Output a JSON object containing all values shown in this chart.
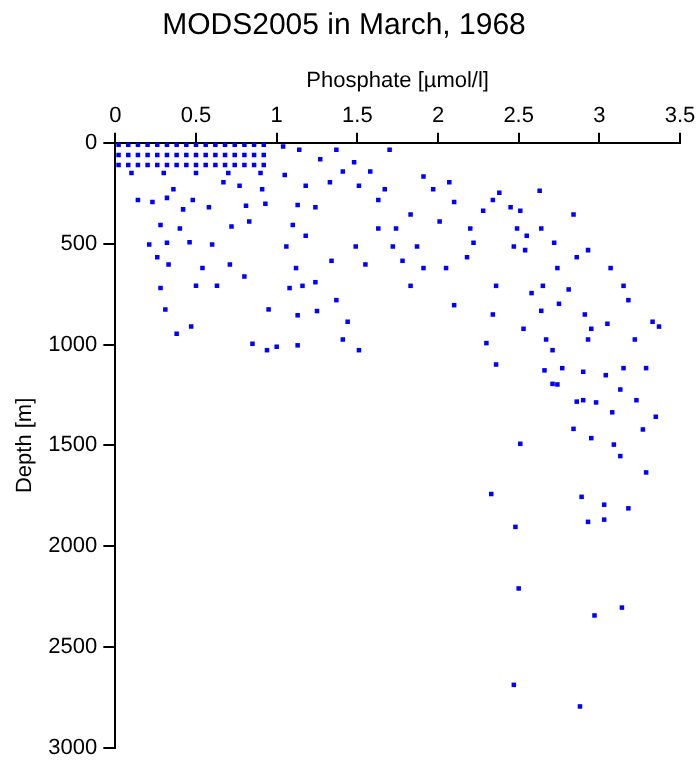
{
  "chart_data": {
    "type": "scatter",
    "title": "MODS2005 in March, 1968",
    "xlabel": "Phosphate [µmol/l]",
    "ylabel": "Depth [m]",
    "xlim": [
      0,
      3.5
    ],
    "xticks": [
      0,
      0.5,
      1,
      1.5,
      2,
      2.5,
      3,
      3.5
    ],
    "ylim": [
      3000,
      0
    ],
    "yticks": [
      0,
      500,
      1000,
      1500,
      2000,
      2500,
      3000
    ],
    "grid": false,
    "legend": false,
    "marker": "square",
    "color": "#0000ff",
    "x": [
      0.02,
      0.08,
      0.14,
      0.2,
      0.26,
      0.32,
      0.38,
      0.44,
      0.5,
      0.56,
      0.62,
      0.68,
      0.74,
      0.8,
      0.86,
      0.92,
      0.02,
      0.08,
      0.14,
      0.2,
      0.26,
      0.32,
      0.38,
      0.44,
      0.5,
      0.56,
      0.62,
      0.68,
      0.74,
      0.8,
      0.86,
      0.92,
      0.02,
      0.08,
      0.14,
      0.2,
      0.26,
      0.32,
      0.38,
      0.44,
      0.5,
      0.56,
      0.62,
      0.68,
      0.74,
      0.8,
      0.86,
      0.92,
      0.1,
      0.3,
      0.5,
      0.7,
      0.9,
      0.14,
      0.23,
      0.32,
      0.36,
      0.48,
      0.58,
      0.42,
      0.28,
      0.4,
      0.21,
      0.32,
      0.46,
      0.6,
      0.26,
      0.33,
      0.54,
      0.5,
      0.63,
      0.71,
      0.8,
      0.28,
      0.31,
      0.38,
      0.47,
      0.85,
      0.94,
      1.0,
      1.13,
      0.72,
      0.83,
      0.81,
      0.93,
      0.91,
      0.77,
      0.67,
      1.05,
      1.04,
      1.14,
      1.27,
      1.37,
      1.48,
      1.58,
      1.7,
      1.18,
      1.13,
      1.24,
      1.1,
      1.06,
      1.18,
      1.12,
      1.16,
      1.24,
      1.34,
      1.49,
      1.55,
      1.37,
      1.08,
      0.95,
      1.13,
      1.25,
      1.41,
      1.51,
      1.44,
      1.63,
      1.72,
      1.78,
      1.33,
      1.51,
      1.67,
      1.41,
      1.63,
      1.91,
      1.97,
      2.07,
      2.1,
      2.01,
      1.83,
      1.87,
      1.74,
      1.83,
      1.91,
      2.05,
      2.1,
      2.18,
      2.2,
      2.22,
      2.28,
      2.34,
      2.38,
      2.45,
      2.51,
      2.49,
      2.47,
      2.54,
      2.63,
      2.55,
      2.64,
      2.72,
      2.84,
      2.93,
      2.86,
      2.74,
      2.65,
      2.58,
      2.36,
      2.34,
      2.53,
      2.3,
      2.36,
      2.64,
      2.75,
      2.81,
      2.91,
      2.95,
      3.05,
      3.07,
      3.15,
      3.18,
      2.93,
      2.71,
      2.67,
      2.77,
      2.9,
      3.04,
      3.15,
      3.22,
      3.33,
      3.37,
      3.29,
      3.13,
      2.71,
      2.66,
      2.74,
      2.9,
      2.98,
      2.86,
      3.08,
      3.23,
      3.35,
      3.27,
      2.84,
      2.95,
      3.09,
      3.13,
      3.29,
      2.51,
      2.33,
      2.89,
      3.03,
      3.18,
      2.93,
      3.03,
      2.48,
      2.5,
      3.14,
      2.97,
      2.47,
      2.88
    ],
    "values": [
      10,
      10,
      10,
      10,
      10,
      10,
      10,
      10,
      10,
      10,
      10,
      10,
      10,
      10,
      10,
      10,
      60,
      60,
      60,
      60,
      60,
      60,
      60,
      60,
      60,
      60,
      60,
      60,
      60,
      60,
      60,
      60,
      110,
      110,
      110,
      110,
      110,
      110,
      110,
      110,
      110,
      110,
      110,
      110,
      110,
      110,
      110,
      110,
      150,
      150,
      150,
      150,
      150,
      284,
      294,
      273,
      230,
      284,
      319,
      330,
      408,
      425,
      504,
      496,
      493,
      504,
      567,
      603,
      621,
      709,
      709,
      603,
      663,
      720,
      826,
      947,
      911,
      996,
      1028,
      1011,
      1004,
      415,
      390,
      312,
      302,
      230,
      213,
      195,
      160,
      18,
      35,
      82,
      35,
      96,
      142,
      35,
      213,
      308,
      319,
      408,
      514,
      461,
      621,
      709,
      691,
      585,
      514,
      603,
      780,
      720,
      826,
      855,
      834,
      975,
      1028,
      887,
      425,
      514,
      585,
      195,
      213,
      230,
      142,
      284,
      167,
      230,
      195,
      294,
      390,
      355,
      514,
      425,
      709,
      621,
      621,
      805,
      567,
      425,
      496,
      337,
      284,
      248,
      319,
      337,
      425,
      514,
      532,
      238,
      461,
      425,
      496,
      355,
      532,
      567,
      621,
      709,
      745,
      709,
      851,
      922,
      993,
      1099,
      833,
      798,
      727,
      851,
      922,
      897,
      621,
      709,
      780,
      975,
      1028,
      975,
      1117,
      1135,
      1152,
      1117,
      975,
      887,
      911,
      1117,
      1223,
      1195,
      1128,
      1198,
      1276,
      1287,
      1283,
      1336,
      1276,
      1358,
      1421,
      1418,
      1464,
      1496,
      1553,
      1634,
      1492,
      1741,
      1755,
      1794,
      1812,
      1879,
      1868,
      1904,
      2209,
      2304,
      2343,
      2687,
      2794
    ]
  }
}
